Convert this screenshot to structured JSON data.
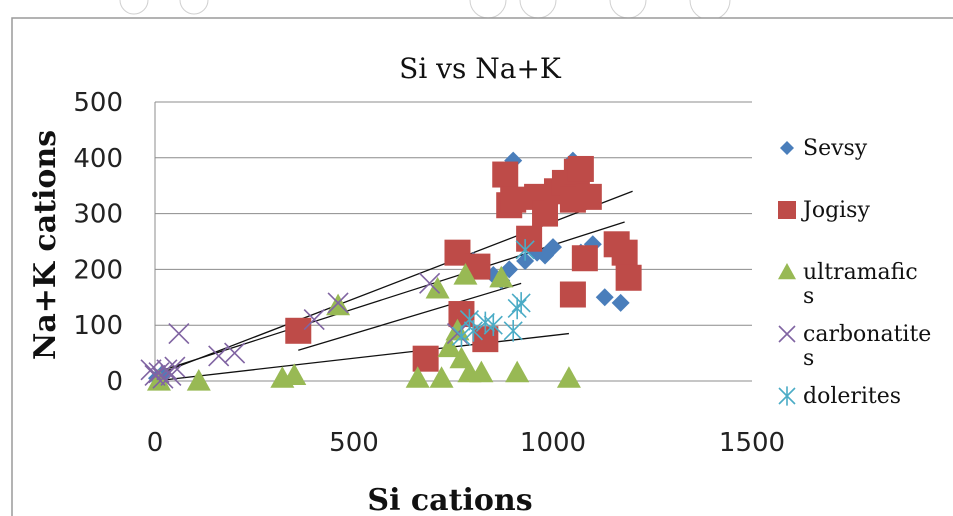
{
  "chart_data": {
    "type": "scatter",
    "title": "Si vs Na+K",
    "xlabel": "Si  cations",
    "ylabel": "Na+K cations",
    "xlim": [
      0,
      1500
    ],
    "ylim": [
      0,
      500
    ],
    "x_ticks": [
      "0",
      "500",
      "1000",
      "1500"
    ],
    "y_ticks": [
      "0",
      "100",
      "200",
      "300",
      "400",
      "500"
    ],
    "grid": "horizontal",
    "legend_position": "right",
    "series": [
      {
        "name": "Sevsy",
        "marker": "diamond",
        "color": "#4a7ebb",
        "points": [
          [
            5,
            5
          ],
          [
            15,
            10
          ],
          [
            800,
            215
          ],
          [
            850,
            190
          ],
          [
            870,
            180
          ],
          [
            890,
            200
          ],
          [
            900,
            395
          ],
          [
            930,
            215
          ],
          [
            960,
            230
          ],
          [
            980,
            225
          ],
          [
            1000,
            240
          ],
          [
            1050,
            395
          ],
          [
            1070,
            230
          ],
          [
            1100,
            245
          ],
          [
            1130,
            150
          ],
          [
            1170,
            140
          ]
        ]
      },
      {
        "name": "Jogisy",
        "marker": "square",
        "color": "#be4b48",
        "points": [
          [
            360,
            90
          ],
          [
            680,
            40
          ],
          [
            760,
            230
          ],
          [
            770,
            120
          ],
          [
            810,
            205
          ],
          [
            830,
            75
          ],
          [
            880,
            370
          ],
          [
            890,
            315
          ],
          [
            900,
            325
          ],
          [
            940,
            255
          ],
          [
            960,
            330
          ],
          [
            980,
            300
          ],
          [
            1010,
            340
          ],
          [
            1030,
            355
          ],
          [
            1050,
            325
          ],
          [
            1060,
            375
          ],
          [
            1070,
            380
          ],
          [
            1090,
            330
          ],
          [
            1080,
            220
          ],
          [
            1050,
            155
          ],
          [
            1160,
            245
          ],
          [
            1180,
            230
          ],
          [
            1190,
            185
          ]
        ]
      },
      {
        "name": "ultramafic s",
        "marker": "triangle",
        "color": "#98b954",
        "points": [
          [
            10,
            0
          ],
          [
            110,
            0
          ],
          [
            320,
            5
          ],
          [
            350,
            10
          ],
          [
            460,
            135
          ],
          [
            660,
            5
          ],
          [
            710,
            165
          ],
          [
            720,
            5
          ],
          [
            740,
            60
          ],
          [
            760,
            90
          ],
          [
            770,
            40
          ],
          [
            780,
            190
          ],
          [
            790,
            15
          ],
          [
            820,
            15
          ],
          [
            870,
            185
          ],
          [
            910,
            15
          ],
          [
            1040,
            5
          ]
        ]
      },
      {
        "name": "carbonatite s",
        "marker": "x",
        "color": "#8064a2",
        "points": [
          [
            -10,
            20
          ],
          [
            0,
            10
          ],
          [
            10,
            15
          ],
          [
            20,
            5
          ],
          [
            30,
            20
          ],
          [
            40,
            10
          ],
          [
            50,
            25
          ],
          [
            60,
            85
          ],
          [
            160,
            45
          ],
          [
            200,
            50
          ],
          [
            400,
            110
          ],
          [
            460,
            140
          ],
          [
            690,
            175
          ],
          [
            760,
            85
          ]
        ]
      },
      {
        "name": "dolerites",
        "marker": "asterisk",
        "color": "#4bacc6",
        "points": [
          [
            770,
            80
          ],
          [
            790,
            110
          ],
          [
            800,
            90
          ],
          [
            830,
            105
          ],
          [
            850,
            100
          ],
          [
            900,
            90
          ],
          [
            910,
            130
          ],
          [
            920,
            140
          ],
          [
            930,
            235
          ]
        ]
      }
    ],
    "trendlines": [
      {
        "from": [
          0,
          10
        ],
        "to": [
          1200,
          340
        ]
      },
      {
        "from": [
          0,
          15
        ],
        "to": [
          1180,
          285
        ]
      },
      {
        "from": [
          0,
          0
        ],
        "to": [
          1040,
          85
        ]
      },
      {
        "from": [
          360,
          55
        ],
        "to": [
          920,
          175
        ]
      }
    ]
  }
}
